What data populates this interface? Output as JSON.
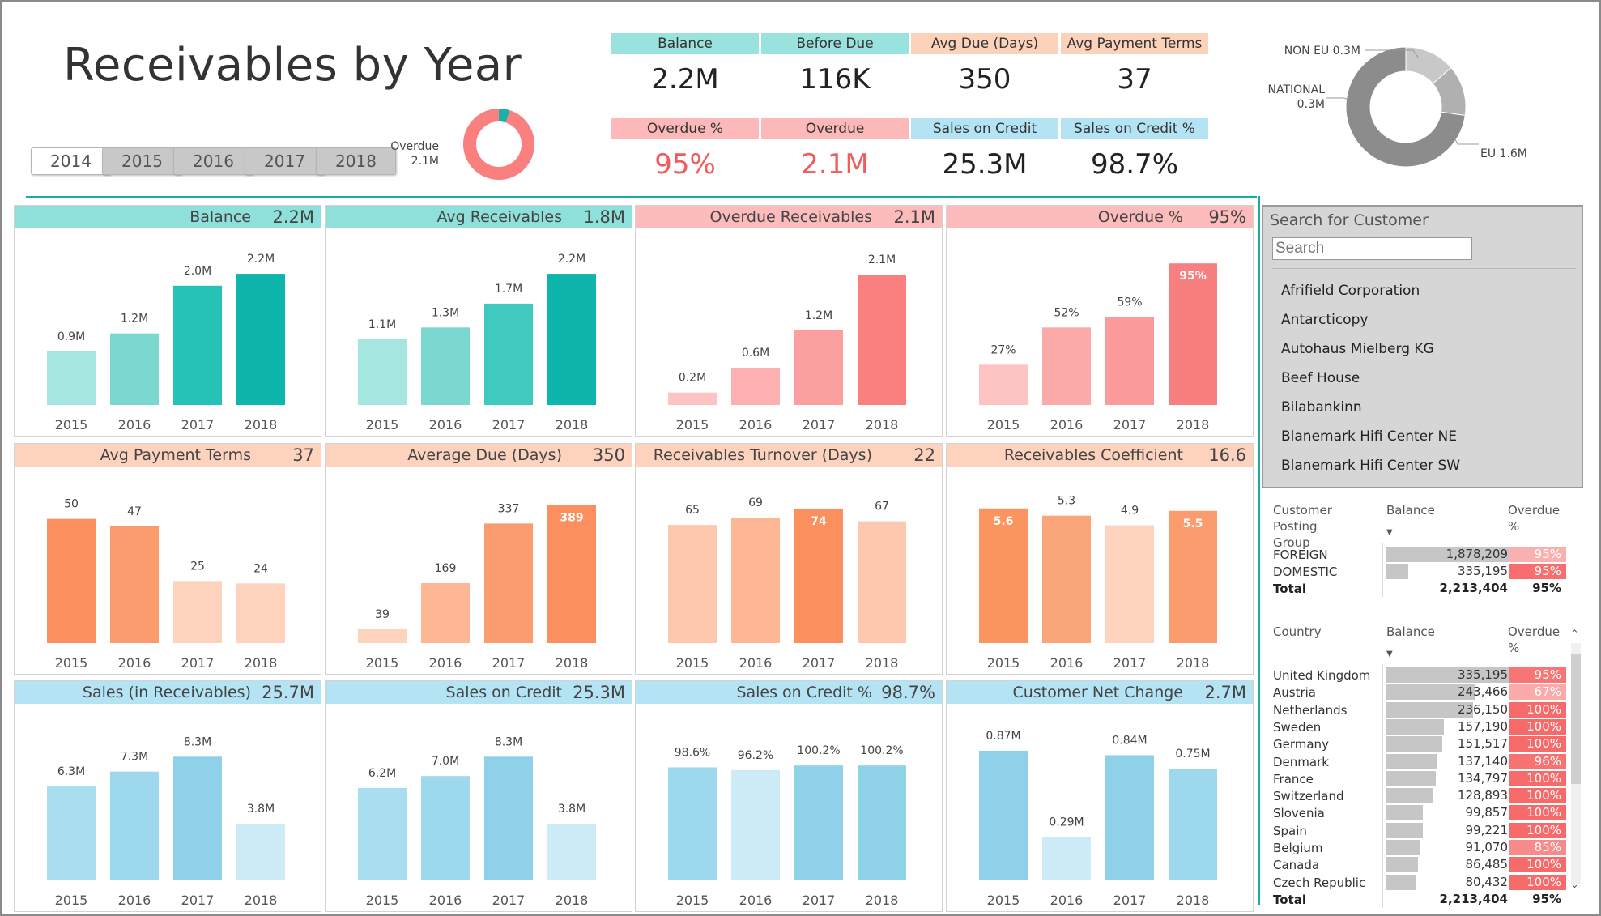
{
  "title": "Receivables by Year",
  "years": [
    "2014",
    "2015",
    "2016",
    "2017",
    "2018"
  ],
  "overdue_donut": {
    "label": "Overdue",
    "value": "2.1M",
    "overdue_fraction": 0.95
  },
  "kpis": [
    {
      "label": "Balance",
      "value": "2.2M",
      "bg": "#99e2dd",
      "red": false
    },
    {
      "label": "Before Due",
      "value": "116K",
      "bg": "#99e2dd",
      "red": false
    },
    {
      "label": "Avg Due (Days)",
      "value": "350",
      "bg": "#fdd2bb",
      "red": false
    },
    {
      "label": "Avg Payment Terms",
      "value": "37",
      "bg": "#fdd2bb",
      "red": false
    },
    {
      "label": "Overdue %",
      "value": "95%",
      "bg": "#fdb9b9",
      "red": true
    },
    {
      "label": "Overdue",
      "value": "2.1M",
      "bg": "#fdb9b9",
      "red": true
    },
    {
      "label": "Sales on Credit",
      "value": "25.3M",
      "bg": "#b4e3f3",
      "red": false
    },
    {
      "label": "Sales on Credit %",
      "value": "98.7%",
      "bg": "#b4e3f3",
      "red": false
    }
  ],
  "region_donut": {
    "labels": [
      {
        "name": "NON EU",
        "value": "0.3M"
      },
      {
        "name": "NATIONAL",
        "value": "0.3M"
      },
      {
        "name": "EU",
        "value": "1.6M"
      }
    ],
    "values": [
      0.3,
      0.3,
      1.6
    ],
    "colors": [
      "#c8c8c8",
      "#b0b0b0",
      "#8c8c8c"
    ]
  },
  "chart_data": [
    {
      "type": "bar",
      "title": "Balance",
      "total": "2.2M",
      "header_bg": "#8fe0db",
      "categories": [
        "2015",
        "2016",
        "2017",
        "2018"
      ],
      "values": [
        0.9,
        1.2,
        2.0,
        2.2
      ],
      "labels": [
        "0.9M",
        "1.2M",
        "2.0M",
        "2.2M"
      ],
      "colors": [
        "#a6e6e1",
        "#7ad8d1",
        "#26c2b7",
        "#0db5aa"
      ],
      "inside": [
        false,
        false,
        false,
        false
      ],
      "ymax": 2.5
    },
    {
      "type": "bar",
      "title": "Avg Receivables",
      "total": "1.8M",
      "header_bg": "#8fe0db",
      "categories": [
        "2015",
        "2016",
        "2017",
        "2018"
      ],
      "values": [
        1.1,
        1.3,
        1.7,
        2.2
      ],
      "labels": [
        "1.1M",
        "1.3M",
        "1.7M",
        "2.2M"
      ],
      "colors": [
        "#a6e6e1",
        "#7ad8d1",
        "#40c9bf",
        "#0db5aa"
      ],
      "inside": [
        false,
        false,
        false,
        false
      ],
      "ymax": 2.5
    },
    {
      "type": "bar",
      "title": "Overdue Receivables",
      "total": "2.1M",
      "header_bg": "#fdbcbc",
      "categories": [
        "2015",
        "2016",
        "2017",
        "2018"
      ],
      "values": [
        0.2,
        0.6,
        1.2,
        2.1
      ],
      "labels": [
        "0.2M",
        "0.6M",
        "1.2M",
        "2.1M"
      ],
      "colors": [
        "#fdc4c4",
        "#fdb0b0",
        "#fb9f9f",
        "#fa8080"
      ],
      "inside": [
        false,
        false,
        false,
        false
      ],
      "ymax": 2.4
    },
    {
      "type": "bar",
      "title": "Overdue %",
      "total": "95%",
      "header_bg": "#fdbcbc",
      "categories": [
        "2015",
        "2016",
        "2017",
        "2018"
      ],
      "values": [
        27,
        52,
        59,
        95
      ],
      "labels": [
        "27%",
        "52%",
        "59%",
        "95%"
      ],
      "colors": [
        "#fdc4c4",
        "#fba9a9",
        "#fa9a9a",
        "#f77f7f"
      ],
      "inside": [
        false,
        false,
        false,
        true
      ],
      "ymax": 100
    },
    {
      "type": "bar",
      "title": "Avg Payment Terms",
      "total": "37",
      "header_bg": "#fdd3be",
      "categories": [
        "2015",
        "2016",
        "2017",
        "2018"
      ],
      "values": [
        50,
        47,
        25,
        24
      ],
      "labels": [
        "50",
        "47",
        "25",
        "24"
      ],
      "colors": [
        "#fb8f5e",
        "#fb9c6e",
        "#fdd3be",
        "#fdd3be"
      ],
      "inside": [
        false,
        false,
        false,
        false
      ],
      "ymax": 60
    },
    {
      "type": "bar",
      "title": "Average Due (Days)",
      "total": "350",
      "header_bg": "#fdd3be",
      "categories": [
        "2015",
        "2016",
        "2017",
        "2018"
      ],
      "values": [
        39,
        169,
        337,
        389
      ],
      "labels": [
        "39",
        "169",
        "337",
        "389"
      ],
      "colors": [
        "#fdd3be",
        "#fdb794",
        "#fb9c6e",
        "#fb8f5e"
      ],
      "inside": [
        false,
        false,
        false,
        true
      ],
      "ymax": 420
    },
    {
      "type": "bar",
      "title": "Receivables Turnover (Days)",
      "total": "22",
      "header_bg": "#fdd3be",
      "categories": [
        "2015",
        "2016",
        "2017",
        "2018"
      ],
      "values": [
        65,
        69,
        74,
        67
      ],
      "labels": [
        "65",
        "69",
        "74",
        "67"
      ],
      "colors": [
        "#fdc8ad",
        "#fdb794",
        "#fb8f5e",
        "#fdc8ad"
      ],
      "inside": [
        false,
        false,
        true,
        false
      ],
      "ymax": 82
    },
    {
      "type": "bar",
      "title": "Receivables Coefficient",
      "total": "16.6",
      "header_bg": "#fdd3be",
      "categories": [
        "2015",
        "2016",
        "2017",
        "2018"
      ],
      "values": [
        5.6,
        5.3,
        4.9,
        5.5
      ],
      "labels": [
        "5.6",
        "5.3",
        "4.9",
        "5.5"
      ],
      "colors": [
        "#fb955f",
        "#fba57b",
        "#fdd3be",
        "#fb9c6e"
      ],
      "inside": [
        true,
        false,
        false,
        true
      ],
      "ymax": 6.2
    },
    {
      "type": "bar",
      "title": "Sales (in Receivables)",
      "total": "25.7M",
      "header_bg": "#b4e3f3",
      "categories": [
        "2015",
        "2016",
        "2017",
        "2018"
      ],
      "values": [
        6.3,
        7.3,
        8.3,
        3.8
      ],
      "labels": [
        "6.3M",
        "7.3M",
        "8.3M",
        "3.8M"
      ],
      "colors": [
        "#a9ddf0",
        "#9dd8ed",
        "#8ed1e9",
        "#cdebf6"
      ],
      "inside": [
        false,
        false,
        false,
        false
      ],
      "ymax": 10
    },
    {
      "type": "bar",
      "title": "Sales on Credit",
      "total": "25.3M",
      "header_bg": "#b4e3f3",
      "categories": [
        "2015",
        "2016",
        "2017",
        "2018"
      ],
      "values": [
        6.2,
        7.0,
        8.3,
        3.8
      ],
      "labels": [
        "6.2M",
        "7.0M",
        "8.3M",
        "3.8M"
      ],
      "colors": [
        "#a9ddf0",
        "#9dd8ed",
        "#8ed1e9",
        "#cdebf6"
      ],
      "inside": [
        false,
        false,
        false,
        false
      ],
      "ymax": 10
    },
    {
      "type": "bar",
      "title": "Sales on Credit %",
      "total": "98.7%",
      "header_bg": "#b4e3f3",
      "categories": [
        "2015",
        "2016",
        "2017",
        "2018"
      ],
      "values": [
        98.6,
        96.2,
        100.2,
        100.2
      ],
      "labels": [
        "98.6%",
        "96.2%",
        "100.2%",
        "100.2%"
      ],
      "colors": [
        "#9dd8ed",
        "#cdebf6",
        "#8ed1e9",
        "#8ed1e9"
      ],
      "inside": [
        false,
        false,
        false,
        false
      ],
      "ymax": 130
    },
    {
      "type": "bar",
      "title": "Customer Net Change",
      "total": "2.7M",
      "header_bg": "#b4e3f3",
      "categories": [
        "2015",
        "2016",
        "2017",
        "2018"
      ],
      "values": [
        0.87,
        0.29,
        0.84,
        0.75
      ],
      "labels": [
        "0.87M",
        "0.29M",
        "0.84M",
        "0.75M"
      ],
      "colors": [
        "#8ed1e9",
        "#cdebf6",
        "#8ed1e9",
        "#9dd8ed"
      ],
      "inside": [
        false,
        false,
        false,
        false
      ],
      "ymax": 1.0
    }
  ],
  "search": {
    "title": "Search for Customer",
    "placeholder": "Search",
    "customers": [
      "Afrifield Corporation",
      "Antarcticopy",
      "Autohaus Mielberg KG",
      "Beef House",
      "Bilabankinn",
      "Blanemark Hifi Center NE",
      "Blanemark Hifi Center SW"
    ]
  },
  "posting_table": {
    "headers": [
      "Customer Posting Group",
      "Balance",
      "Overdue %"
    ],
    "rows": [
      {
        "name": "FOREIGN",
        "balance": "1,878,209",
        "bal_val": 1878209,
        "overdue": "95%",
        "ov_color": "#fbb0b0"
      },
      {
        "name": "DOMESTIC",
        "balance": "335,195",
        "bal_val": 335195,
        "overdue": "95%",
        "ov_color": "#f86e6e"
      }
    ],
    "total": {
      "name": "Total",
      "balance": "2,213,404",
      "overdue": "95%"
    }
  },
  "country_table": {
    "headers": [
      "Country",
      "Balance",
      "Overdue %"
    ],
    "rows": [
      {
        "name": "United Kingdom",
        "balance": "335,195",
        "bal_val": 335195,
        "overdue": "95%",
        "ov_color": "#f87575"
      },
      {
        "name": "Austria",
        "balance": "243,466",
        "bal_val": 243466,
        "overdue": "67%",
        "ov_color": "#fba9a9"
      },
      {
        "name": "Netherlands",
        "balance": "236,150",
        "bal_val": 236150,
        "overdue": "100%",
        "ov_color": "#f76a6a"
      },
      {
        "name": "Sweden",
        "balance": "157,190",
        "bal_val": 157190,
        "overdue": "100%",
        "ov_color": "#f76a6a"
      },
      {
        "name": "Germany",
        "balance": "151,517",
        "bal_val": 151517,
        "overdue": "100%",
        "ov_color": "#f76a6a"
      },
      {
        "name": "Denmark",
        "balance": "137,140",
        "bal_val": 137140,
        "overdue": "96%",
        "ov_color": "#f77272"
      },
      {
        "name": "France",
        "balance": "134,797",
        "bal_val": 134797,
        "overdue": "100%",
        "ov_color": "#f76a6a"
      },
      {
        "name": "Switzerland",
        "balance": "128,893",
        "bal_val": 128893,
        "overdue": "100%",
        "ov_color": "#f76a6a"
      },
      {
        "name": "Slovenia",
        "balance": "99,857",
        "bal_val": 99857,
        "overdue": "100%",
        "ov_color": "#f76a6a"
      },
      {
        "name": "Spain",
        "balance": "99,221",
        "bal_val": 99221,
        "overdue": "100%",
        "ov_color": "#f76a6a"
      },
      {
        "name": "Belgium",
        "balance": "91,070",
        "bal_val": 91070,
        "overdue": "85%",
        "ov_color": "#f98a8a"
      },
      {
        "name": "Canada",
        "balance": "86,485",
        "bal_val": 86485,
        "overdue": "100%",
        "ov_color": "#f76a6a"
      },
      {
        "name": "Czech Republic",
        "balance": "80,432",
        "bal_val": 80432,
        "overdue": "100%",
        "ov_color": "#f76a6a"
      }
    ],
    "total": {
      "name": "Total",
      "balance": "2,213,404",
      "overdue": "95%"
    }
  }
}
